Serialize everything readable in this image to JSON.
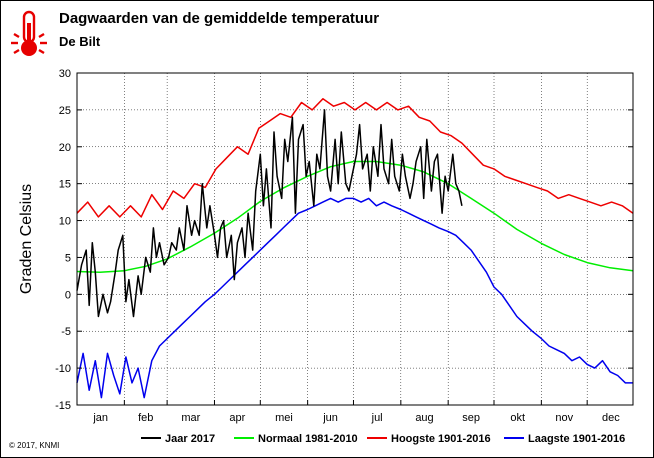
{
  "header": {
    "title": "Dagwaarden van de gemiddelde temperatuur",
    "subtitle": "De Bilt",
    "icon": "thermometer-icon"
  },
  "footer": {
    "copyright": "© 2017, KNMI"
  },
  "chart_data": {
    "type": "line",
    "title": "Dagwaarden van de gemiddelde temperatuur",
    "subtitle": "De Bilt",
    "xlabel": "",
    "ylabel": "Graden Celsius",
    "xlim": [
      1,
      365
    ],
    "ylim": [
      -15,
      30
    ],
    "yticks": [
      -15,
      -10,
      -5,
      0,
      5,
      10,
      15,
      20,
      25,
      30
    ],
    "grid": true,
    "legend_position": "bottom",
    "months": [
      {
        "label": "jan",
        "start": 1
      },
      {
        "label": "feb",
        "start": 32
      },
      {
        "label": "mar",
        "start": 60
      },
      {
        "label": "apr",
        "start": 91
      },
      {
        "label": "mei",
        "start": 121
      },
      {
        "label": "jun",
        "start": 152
      },
      {
        "label": "jul",
        "start": 182
      },
      {
        "label": "aug",
        "start": 213
      },
      {
        "label": "sep",
        "start": 244
      },
      {
        "label": "okt",
        "start": 274
      },
      {
        "label": "nov",
        "start": 305
      },
      {
        "label": "dec",
        "start": 335
      }
    ],
    "series": [
      {
        "name": "Jaar 2017",
        "color": "#000000",
        "x": [
          1,
          4,
          7,
          9,
          11,
          13,
          15,
          18,
          21,
          23,
          26,
          28,
          31,
          33,
          35,
          38,
          41,
          43,
          46,
          49,
          51,
          53,
          55,
          58,
          61,
          63,
          66,
          68,
          71,
          73,
          76,
          78,
          81,
          83,
          86,
          88,
          91,
          93,
          95,
          97,
          99,
          102,
          104,
          106,
          109,
          111,
          113,
          116,
          118,
          121,
          123,
          125,
          128,
          130,
          132,
          135,
          137,
          139,
          142,
          144,
          146,
          149,
          151,
          153,
          156,
          158,
          160,
          163,
          165,
          167,
          170,
          172,
          174,
          177,
          179,
          181,
          184,
          186,
          188,
          191,
          193,
          195,
          198,
          200,
          202,
          205,
          207,
          209,
          212,
          214,
          216,
          219,
          221,
          223,
          226,
          228,
          230,
          233,
          235,
          237,
          240,
          242,
          244,
          247,
          249,
          251,
          253
        ],
        "values": [
          0.5,
          4,
          6,
          -1.5,
          7,
          3,
          -3,
          0,
          -2.5,
          -1,
          3,
          6,
          8,
          -1,
          2,
          -3,
          2.5,
          0,
          5,
          3,
          9,
          5,
          7,
          4,
          5,
          7,
          6,
          9,
          6,
          12,
          8,
          10,
          8,
          15,
          9,
          12,
          8,
          5,
          9,
          10,
          5,
          8,
          2,
          7,
          9,
          5,
          11,
          6,
          14,
          19,
          12,
          17,
          9,
          22,
          16,
          13,
          21,
          18,
          24,
          11,
          21,
          23,
          16,
          18,
          12,
          19,
          17,
          25,
          16,
          14,
          21,
          15,
          22,
          15,
          14,
          16,
          19,
          23,
          17,
          19,
          14,
          20,
          16,
          23,
          17,
          15,
          21,
          16,
          14,
          19,
          16,
          13,
          15,
          18,
          20,
          13,
          21,
          14,
          18,
          19,
          11,
          16,
          14,
          19,
          15,
          14,
          12
        ]
      },
      {
        "name": "Normaal 1981-2010",
        "color": "#00ee00",
        "x": [
          1,
          16,
          32,
          46,
          60,
          75,
          91,
          106,
          121,
          136,
          152,
          167,
          182,
          197,
          213,
          228,
          244,
          259,
          274,
          289,
          305,
          320,
          335,
          350,
          365
        ],
        "values": [
          3.1,
          3.0,
          3.2,
          3.8,
          4.8,
          6.4,
          8.3,
          10.3,
          12.6,
          14.4,
          16.0,
          17.3,
          18.0,
          18.0,
          17.5,
          16.6,
          15.0,
          13.0,
          11.0,
          8.8,
          6.9,
          5.4,
          4.3,
          3.6,
          3.2
        ]
      },
      {
        "name": "Hoogste 1901-2016",
        "color": "#ee0000",
        "x": [
          1,
          8,
          15,
          22,
          29,
          36,
          43,
          50,
          57,
          64,
          71,
          78,
          85,
          92,
          99,
          106,
          113,
          120,
          127,
          134,
          141,
          148,
          155,
          162,
          169,
          176,
          183,
          190,
          197,
          204,
          211,
          218,
          225,
          232,
          239,
          246,
          253,
          260,
          267,
          274,
          281,
          288,
          295,
          302,
          309,
          316,
          323,
          330,
          337,
          344,
          351,
          358,
          365
        ],
        "values": [
          11,
          12.5,
          10.5,
          12,
          10.5,
          12,
          10.5,
          13.5,
          11.5,
          14,
          13,
          15,
          14.5,
          17,
          18.5,
          20,
          19,
          22.5,
          23.5,
          24.5,
          24,
          26,
          25,
          26.5,
          25.5,
          26,
          25,
          26,
          25,
          26,
          25,
          25.5,
          24,
          23.5,
          22,
          21.5,
          20.5,
          19,
          17.5,
          17,
          16,
          15.5,
          15,
          14.5,
          14,
          13,
          13.5,
          13,
          12.5,
          12,
          12.5,
          12,
          11
        ]
      },
      {
        "name": "Laagste 1901-2016",
        "color": "#0000ee",
        "x": [
          1,
          5,
          9,
          13,
          17,
          21,
          25,
          29,
          33,
          37,
          41,
          45,
          50,
          55,
          60,
          65,
          70,
          75,
          80,
          85,
          91,
          96,
          101,
          106,
          111,
          116,
          121,
          126,
          131,
          136,
          141,
          146,
          152,
          157,
          162,
          167,
          172,
          177,
          182,
          187,
          192,
          197,
          202,
          207,
          213,
          218,
          223,
          228,
          233,
          238,
          244,
          249,
          254,
          259,
          264,
          269,
          274,
          279,
          284,
          289,
          294,
          299,
          305,
          310,
          315,
          320,
          325,
          330,
          335,
          340,
          345,
          350,
          355,
          360,
          365
        ],
        "values": [
          -12,
          -8,
          -13,
          -9,
          -14,
          -8,
          -11,
          -13.5,
          -8.5,
          -12,
          -10,
          -14,
          -9,
          -7,
          -6,
          -5,
          -4,
          -3,
          -2,
          -1,
          0,
          1,
          2,
          3,
          4,
          5,
          6,
          7,
          8,
          9,
          10,
          11,
          11.5,
          12,
          12.5,
          13,
          12.5,
          13,
          13,
          12.5,
          13,
          12,
          12.5,
          12,
          11.5,
          11,
          10.5,
          10,
          9.5,
          9,
          8.5,
          8,
          7,
          6,
          4.5,
          3,
          1,
          0,
          -1.5,
          -3,
          -4,
          -5,
          -6,
          -7,
          -7.5,
          -8,
          -9,
          -8.5,
          -9.5,
          -10,
          -9,
          -10.5,
          -11,
          -12,
          -12
        ]
      }
    ]
  }
}
